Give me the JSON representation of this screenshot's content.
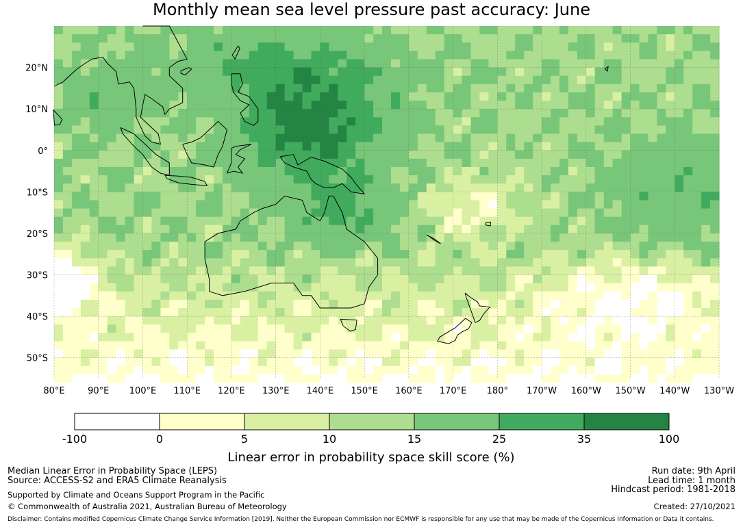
{
  "title": "Monthly mean sea level pressure past accuracy: June",
  "map": {
    "lon_range": [
      80,
      230
    ],
    "lat_range": [
      -55,
      30
    ],
    "lon_ticks": [
      "80°E",
      "90°E",
      "100°E",
      "110°E",
      "120°E",
      "130°E",
      "140°E",
      "150°E",
      "160°E",
      "170°E",
      "180°",
      "170°W",
      "160°W",
      "150°W",
      "140°W",
      "130°W"
    ],
    "lat_ticks": [
      "20°N",
      "10°N",
      "0°",
      "10°S",
      "20°S",
      "30°S",
      "40°S",
      "50°S"
    ],
    "gridlines": true
  },
  "colorbar": {
    "label": "Linear error in probability space skill score (%)",
    "bounds": [
      "-100",
      "0",
      "5",
      "10",
      "15",
      "25",
      "35",
      "100"
    ],
    "colors": [
      "#ffffff",
      "#ffffcc",
      "#d9f0a3",
      "#addd8e",
      "#78c679",
      "#41ab5d",
      "#238443"
    ]
  },
  "footer": {
    "left": [
      "Median Linear Error in Probability Space (LEPS)",
      "Source: ACCESS-S2 and ERA5 Climate Reanalysis"
    ],
    "support": "Supported by Climate and Oceans Support Program in the Pacific",
    "copyright": "© Commonwealth of Australia 2021, Australian Bureau of Meteorology",
    "run_date": "Run date: 9th April",
    "lead_time": "Lead time: 1 month",
    "hindcast": "Hindcast period: 1981-2018",
    "created": "Created: 27/10/2021",
    "disclaimer": "Disclaimer: Contains modified Copernicus Climate Change Service Information [2019]. Neither the European Commission nor ECMWF is responsible for any use that may be made of the Copernicus Information or Data it contains."
  }
}
